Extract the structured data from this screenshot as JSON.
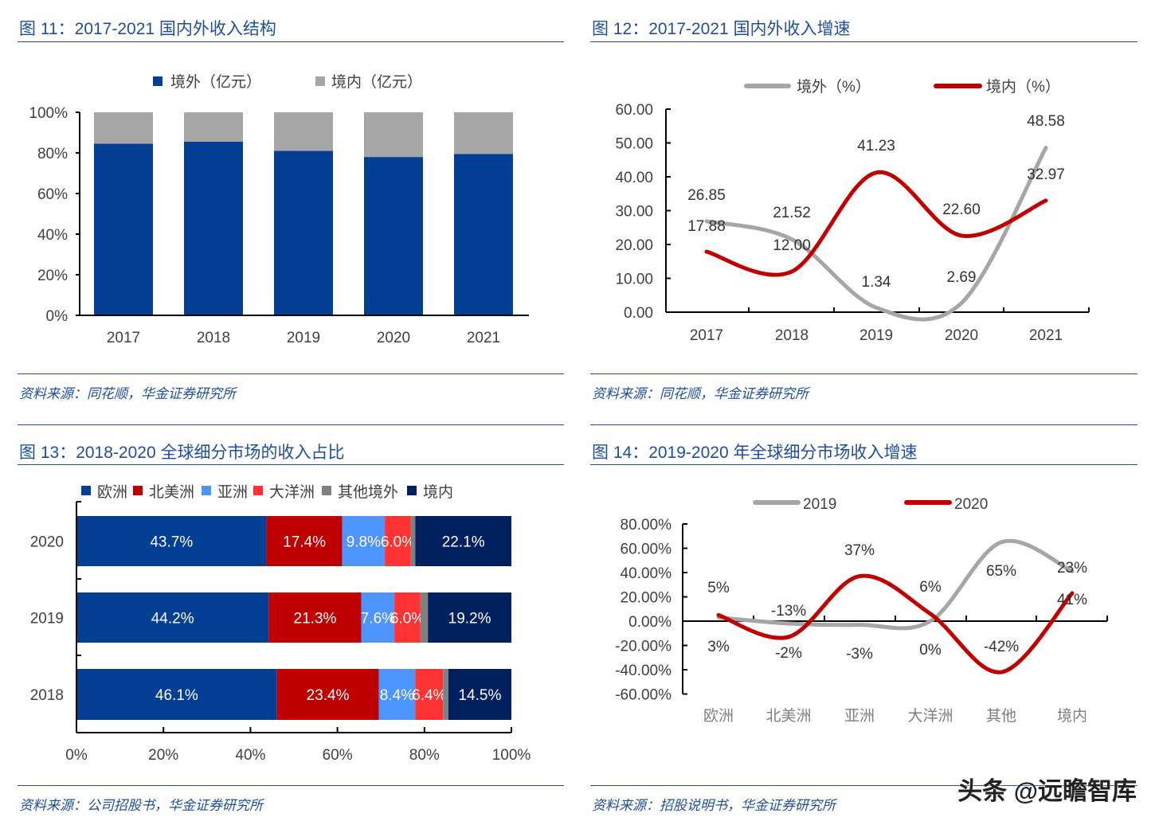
{
  "panels": [
    {
      "title": "图 11：2017-2021 国内外收入结构",
      "source": "资料来源：同花顺，华金证券研究所"
    },
    {
      "title": "图 12：2017-2021 国内外收入增速",
      "source": "资料来源：同花顺，华金证券研究所"
    },
    {
      "title": "图 13：2018-2020 全球细分市场的收入占比",
      "source": "资料来源：公司招股书，华金证券研究所"
    },
    {
      "title": "图 14：2019-2020 年全球细分市场收入增速",
      "source": "资料来源：招股说明书，华金证券研究所"
    }
  ],
  "watermark": "头条 @远瞻智库",
  "chart_data": [
    {
      "type": "bar",
      "stacked": true,
      "percent": true,
      "categories": [
        "2017",
        "2018",
        "2019",
        "2020",
        "2021"
      ],
      "series": [
        {
          "name": "境外（亿元）",
          "color": "#023f95",
          "values": [
            84.5,
            85.5,
            81,
            78,
            79.5
          ]
        },
        {
          "name": "境内（亿元）",
          "color": "#a6a6a6",
          "values": [
            15.5,
            14.5,
            19,
            22,
            20.5
          ]
        }
      ],
      "ylim": [
        0,
        100
      ],
      "yticks": [
        "0%",
        "20%",
        "40%",
        "60%",
        "80%",
        "100%"
      ],
      "legend": "top"
    },
    {
      "type": "line",
      "smooth": true,
      "categories": [
        "2017",
        "2018",
        "2019",
        "2020",
        "2021"
      ],
      "series": [
        {
          "name": "境外（%）",
          "color": "#a6a6a6",
          "values": [
            26.85,
            21.52,
            1.34,
            2.69,
            48.58
          ]
        },
        {
          "name": "境内（%）",
          "color": "#c00000",
          "values": [
            17.88,
            12.0,
            41.23,
            22.6,
            32.97
          ]
        }
      ],
      "ylim": [
        0,
        60
      ],
      "yticks": [
        "0.00",
        "10.00",
        "20.00",
        "30.00",
        "40.00",
        "50.00",
        "60.00"
      ],
      "legend": "top"
    },
    {
      "type": "bar",
      "orientation": "horizontal",
      "stacked": true,
      "categories": [
        "2020",
        "2019",
        "2018"
      ],
      "series": [
        {
          "name": "欧洲",
          "color": "#023f95",
          "values": [
            43.7,
            44.2,
            46.1
          ],
          "labels": [
            "43.7%",
            "44.2%",
            "46.1%"
          ]
        },
        {
          "name": "北美洲",
          "color": "#c00000",
          "values": [
            17.4,
            21.3,
            23.4
          ],
          "labels": [
            "17.4%",
            "21.3%",
            "23.4%"
          ]
        },
        {
          "name": "亚洲",
          "color": "#4d94ff",
          "values": [
            9.8,
            7.6,
            8.4
          ],
          "labels": [
            "9.8%",
            "7.6%",
            "8.4%"
          ]
        },
        {
          "name": "大洋洲",
          "color": "#ff3333",
          "values": [
            6.0,
            6.0,
            6.4
          ],
          "labels": [
            "6.0%",
            "6.0%",
            "6.4%"
          ]
        },
        {
          "name": "其他境外",
          "color": "#808080",
          "values": [
            1.0,
            1.7,
            1.2
          ],
          "labels": [
            "",
            "",
            ""
          ]
        },
        {
          "name": "境内",
          "color": "#002060",
          "values": [
            22.1,
            19.2,
            14.5
          ],
          "labels": [
            "22.1%",
            "19.2%",
            "14.5%"
          ]
        }
      ],
      "xlim": [
        0,
        100
      ],
      "xticks": [
        "0%",
        "20%",
        "40%",
        "60%",
        "80%",
        "100%"
      ],
      "legend": "top"
    },
    {
      "type": "line",
      "smooth": true,
      "categories": [
        "欧洲",
        "北美洲",
        "亚洲",
        "大洋洲",
        "其他",
        "境内"
      ],
      "series": [
        {
          "name": "2019",
          "color": "#a6a6a6",
          "values": [
            3,
            -2,
            -3,
            0,
            65,
            41
          ],
          "labels": [
            "3%",
            "-2%",
            "-3%",
            "0%",
            "65%",
            "41%"
          ]
        },
        {
          "name": "2020",
          "color": "#c00000",
          "values": [
            5,
            -13,
            37,
            6,
            -42,
            23
          ],
          "labels": [
            "5%",
            "-13%",
            "37%",
            "6%",
            "-42%",
            "23%"
          ]
        }
      ],
      "ylim": [
        -60,
        80
      ],
      "yticks": [
        "-60.00%",
        "-40.00%",
        "-20.00%",
        "0.00%",
        "20.00%",
        "40.00%",
        "60.00%",
        "80.00%"
      ],
      "legend": "top"
    }
  ]
}
